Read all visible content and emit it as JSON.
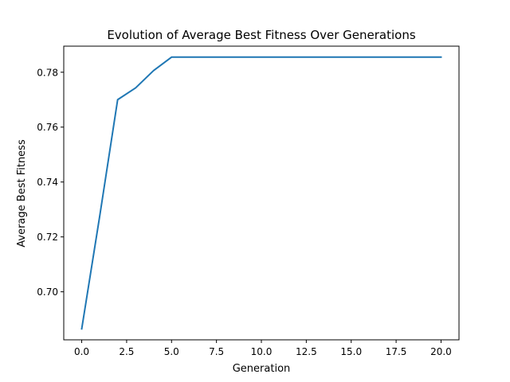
{
  "chart_data": {
    "type": "line",
    "title": "Evolution of Average Best Fitness Over Generations",
    "xlabel": "Generation",
    "ylabel": "Average Best Fitness",
    "xlim": [
      -1.0,
      21.0
    ],
    "ylim": [
      0.6825,
      0.7895
    ],
    "x_ticks": [
      0.0,
      2.5,
      5.0,
      7.5,
      10.0,
      12.5,
      15.0,
      17.5,
      20.0
    ],
    "x_tick_labels": [
      "0.0",
      "2.5",
      "5.0",
      "7.5",
      "10.0",
      "12.5",
      "15.0",
      "17.5",
      "20.0"
    ],
    "y_ticks": [
      0.7,
      0.72,
      0.74,
      0.76,
      0.78
    ],
    "y_tick_labels": [
      "0.70",
      "0.72",
      "0.74",
      "0.76",
      "0.78"
    ],
    "grid": false,
    "legend": false,
    "series": [
      {
        "color": "#1f77b4",
        "x": [
          0,
          1,
          2,
          3,
          4,
          5,
          6,
          7,
          8,
          9,
          10,
          11,
          12,
          13,
          14,
          15,
          16,
          17,
          18,
          19,
          20
        ],
        "y": [
          0.6865,
          0.7275,
          0.77,
          0.7743,
          0.7806,
          0.7855,
          0.7855,
          0.7855,
          0.7855,
          0.7855,
          0.7855,
          0.7855,
          0.7855,
          0.7855,
          0.7855,
          0.7855,
          0.7855,
          0.7855,
          0.7855,
          0.7855,
          0.7855
        ]
      }
    ]
  }
}
